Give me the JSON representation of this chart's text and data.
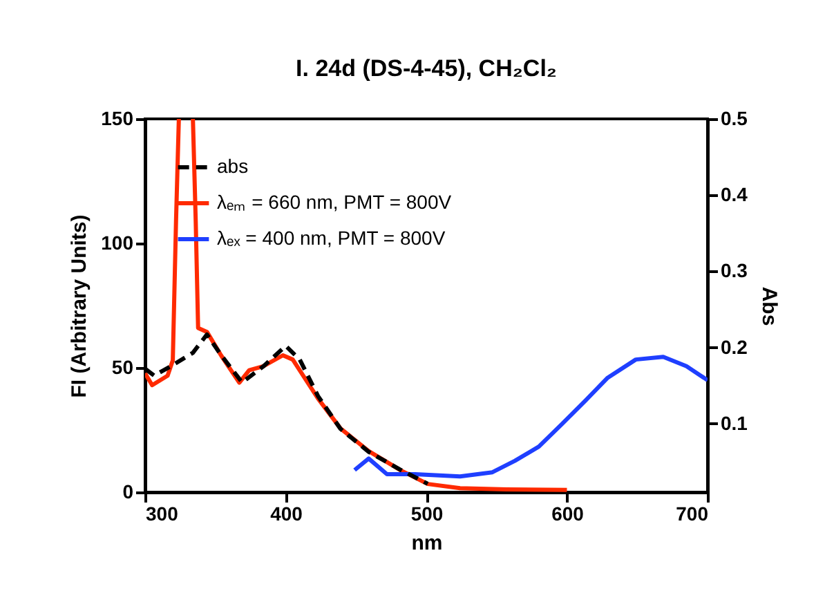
{
  "chart_data": {
    "type": "line",
    "title": "I. 24d (DS-4-45), CH₂Cl₂",
    "xlabel": "nm",
    "ylabel": "FI (Arbitrary Units)",
    "y2label": "Abs",
    "xlim": [
      300,
      700
    ],
    "xticks": [
      300,
      400,
      500,
      600,
      700
    ],
    "ylim": [
      0,
      150
    ],
    "yticks": [
      0,
      50,
      100,
      150
    ],
    "y2lim": [
      0.01,
      0.5
    ],
    "y2ticks": [
      0.1,
      0.2,
      0.3,
      0.4,
      0.5
    ],
    "grid": false,
    "legend": "top left",
    "marker": "none",
    "series": [
      {
        "name": "abs",
        "color": "#000000",
        "axis": "y2",
        "line_style": "dashed",
        "x": [
          300,
          306.5,
          318,
          334,
          344,
          354,
          369,
          384,
          400,
          410,
          423,
          439,
          459,
          482,
          501
        ],
        "values": [
          0.172,
          0.163,
          0.175,
          0.193,
          0.217,
          0.19,
          0.154,
          0.175,
          0.202,
          0.184,
          0.136,
          0.093,
          0.063,
          0.039,
          0.021
        ]
      },
      {
        "name": "λₑₘ = 660 nm, PMT = 800V",
        "color": "#ff2a00",
        "line_style": "solid",
        "x": [
          300,
          305,
          316,
          319.7,
          322,
          324,
          330,
          334,
          336,
          337.7,
          344,
          354,
          367,
          374,
          384,
          398,
          405,
          423,
          439,
          459,
          482,
          501,
          524,
          557,
          600
        ],
        "values": [
          47.8,
          43,
          46.8,
          53,
          109,
          150,
          null,
          150,
          109,
          66,
          64.4,
          55,
          44,
          49,
          50.6,
          55,
          53.3,
          37.6,
          25.6,
          16.5,
          8.7,
          3.3,
          1.6,
          1.1,
          0.9
        ]
      },
      {
        "name": "λₑₓ = 400 nm, PMT = 800V",
        "color": "#1f3fff",
        "line_style": "solid",
        "x": [
          449,
          459,
          472,
          492,
          524,
          547,
          563,
          580,
          596.5,
          613,
          629,
          649,
          668.5,
          685,
          700
        ],
        "values": [
          8.9,
          13.5,
          7.2,
          7.2,
          6.3,
          8,
          12.6,
          18.3,
          27.4,
          36.7,
          46,
          53.3,
          54.4,
          50.6,
          45
        ]
      }
    ]
  }
}
